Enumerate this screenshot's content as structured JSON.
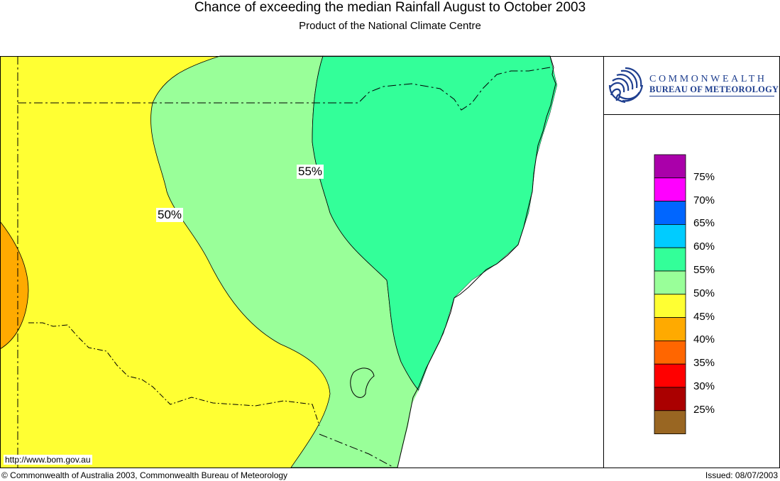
{
  "header": {
    "title": "Chance of exceeding the median Rainfall August to October 2003",
    "subtitle": "Product of the National Climate Centre"
  },
  "logo": {
    "line1": "COMMONWEALTH",
    "line2": "BUREAU OF METEOROLOGY",
    "icon": "bom-swirl-icon",
    "color": "#1f3f8f"
  },
  "map": {
    "contour_labels": [
      "55%",
      "50%"
    ],
    "zone_colors": {
      "p40_45": "#ffaa00",
      "p45_50": "#ffff33",
      "p50_55": "#99ff99",
      "p55_60": "#33ff99"
    }
  },
  "legend": {
    "labels": [
      "75%",
      "70%",
      "65%",
      "60%",
      "55%",
      "50%",
      "45%",
      "40%",
      "35%",
      "30%",
      "25%"
    ],
    "colors": [
      "#aa00aa",
      "#ff00ff",
      "#0066ff",
      "#00ccff",
      "#33ff99",
      "#99ff99",
      "#ffff33",
      "#ffaa00",
      "#ff6600",
      "#ff0000",
      "#aa0000",
      "#996622"
    ]
  },
  "footer": {
    "url": "http://www.bom.gov.au",
    "copyright": "© Commonwealth of Australia 2003, Commonwealth Bureau of Meteorology",
    "issued": "Issued: 08/07/2003"
  }
}
